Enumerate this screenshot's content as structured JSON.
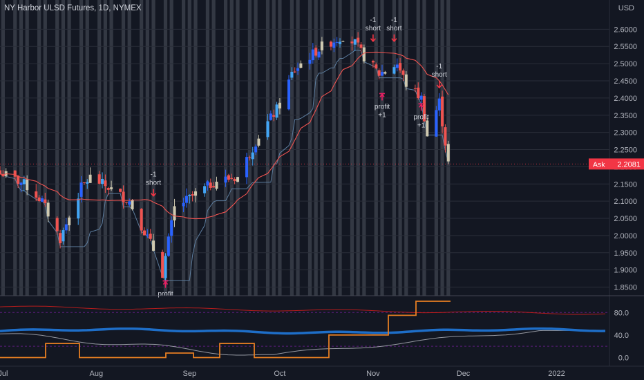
{
  "header": {
    "symbol_title": "NY Harbor ULSD Futures, 1D, NYMEX"
  },
  "colors": {
    "background": "#131722",
    "up_candle": "#2962ff",
    "up_candle_light": "#42a5f5",
    "down_candle": "#ef5350",
    "neutral_candle": "#cfc9b0",
    "ma_line": "#ef5350",
    "stop_line": "#5d7d9e",
    "session_band": "#8a8f99",
    "osc_blue": "#1e6ec8",
    "osc_red": "#b71c1c",
    "osc_orange": "#e67e22",
    "osc_gray": "#9598a1",
    "ask_tag": "#f23645"
  },
  "price_axis": {
    "currency": "USD",
    "ticks": [
      "2.6000",
      "2.5500",
      "2.5000",
      "2.4500",
      "2.4000",
      "2.3500",
      "2.3000",
      "2.2500",
      "2.2000",
      "2.1500",
      "2.1000",
      "2.0500",
      "2.0000",
      "1.9500",
      "1.9000",
      "1.8500"
    ],
    "range": [
      1.825,
      2.655
    ],
    "ask_label": "Ask",
    "ask_value": "2.2081"
  },
  "time_axis": {
    "labels": [
      "Jul",
      "Aug",
      "Sep",
      "Oct",
      "Nov",
      "Dec",
      "2022"
    ]
  },
  "oscillator_axis": {
    "ticks": [
      "80.0",
      "40.0",
      "0.0"
    ],
    "range": [
      -8,
      100
    ],
    "levels": [
      80,
      20
    ]
  },
  "annotations": {
    "signals": [
      {
        "kind": "short",
        "label": "short",
        "qty": "-1",
        "date": "2021-08-20",
        "price": 2.115
      },
      {
        "kind": "short",
        "label": "short",
        "qty": "-1",
        "date": "2021-11-01",
        "price": 2.565
      },
      {
        "kind": "short",
        "label": "short",
        "qty": "-1",
        "date": "2021-11-08",
        "price": 2.565
      },
      {
        "kind": "short",
        "label": "short",
        "qty": "-1",
        "date": "2021-11-23",
        "price": 2.43
      },
      {
        "kind": "profit",
        "label": "profit",
        "qty": "",
        "date": "2021-08-24",
        "price": 1.86
      },
      {
        "kind": "profit",
        "label": "profit",
        "qty": "+1",
        "date": "2021-11-04",
        "price": 2.405
      },
      {
        "kind": "profit",
        "label": "profit",
        "qty": "+1",
        "date": "2021-11-17",
        "price": 2.375
      }
    ]
  },
  "chart_data": {
    "type": "candlestick",
    "title": "NY Harbor ULSD Futures, 1D, NYMEX",
    "y_unit": "USD",
    "ylim": [
      1.825,
      2.655
    ],
    "x_range": [
      "2021-06-30",
      "2022-01-08"
    ],
    "approximate_closes": [
      {
        "date": "2021-07-01",
        "close": 2.18
      },
      {
        "date": "2021-07-08",
        "close": 2.15
      },
      {
        "date": "2021-07-14",
        "close": 2.1
      },
      {
        "date": "2021-07-20",
        "close": 1.99
      },
      {
        "date": "2021-07-27",
        "close": 2.14
      },
      {
        "date": "2021-07-30",
        "close": 2.17
      },
      {
        "date": "2021-08-05",
        "close": 2.14
      },
      {
        "date": "2021-08-12",
        "close": 2.1
      },
      {
        "date": "2021-08-20",
        "close": 1.96
      },
      {
        "date": "2021-08-23",
        "close": 1.89
      },
      {
        "date": "2021-08-27",
        "close": 2.08
      },
      {
        "date": "2021-09-03",
        "close": 2.12
      },
      {
        "date": "2021-09-10",
        "close": 2.16
      },
      {
        "date": "2021-09-17",
        "close": 2.17
      },
      {
        "date": "2021-09-24",
        "close": 2.29
      },
      {
        "date": "2021-10-01",
        "close": 2.38
      },
      {
        "date": "2021-10-05",
        "close": 2.47
      },
      {
        "date": "2021-10-08",
        "close": 2.5
      },
      {
        "date": "2021-10-15",
        "close": 2.55
      },
      {
        "date": "2021-10-22",
        "close": 2.58
      },
      {
        "date": "2021-10-26",
        "close": 2.56
      },
      {
        "date": "2021-10-29",
        "close": 2.52
      },
      {
        "date": "2021-11-03",
        "close": 2.47
      },
      {
        "date": "2021-11-09",
        "close": 2.5
      },
      {
        "date": "2021-11-12",
        "close": 2.44
      },
      {
        "date": "2021-11-17",
        "close": 2.4
      },
      {
        "date": "2021-11-19",
        "close": 2.29
      },
      {
        "date": "2021-11-23",
        "close": 2.39
      },
      {
        "date": "2021-11-26",
        "close": 2.21
      }
    ],
    "series_legend": [
      {
        "name": "Ask",
        "last_value": 2.2081
      }
    ]
  }
}
